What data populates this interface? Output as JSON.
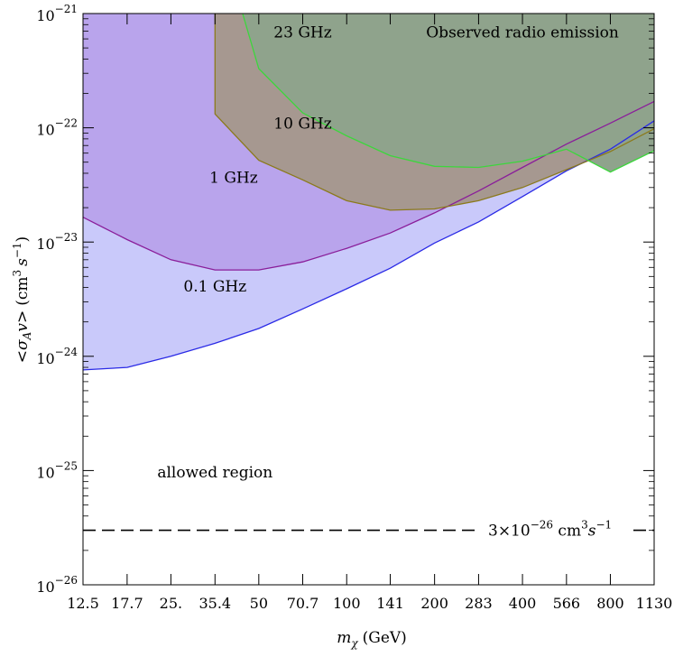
{
  "chart_data": {
    "type": "area",
    "title": "",
    "xlabel": "m_χ (GeV)",
    "xlabel_parts": {
      "symbol": "m",
      "sub": "χ",
      "unit": "(GeV)"
    },
    "ylabel": "<σ_A v> (cm^3 s^-1)",
    "ylabel_parts": {
      "open": "<",
      "sigma": "σ",
      "sigma_sub": "A",
      "v": "v",
      "close": ">",
      "unit_open": "(cm",
      "cm_exp": "3",
      "s": "s",
      "s_exp": "−1",
      "unit_close": ")"
    },
    "x_scale": "log",
    "y_scale": "log",
    "x_ticks": [
      12.5,
      17.7,
      25,
      35.4,
      50,
      70.7,
      100,
      141,
      200,
      283,
      400,
      566,
      800,
      1130
    ],
    "x_tick_labels": [
      "12.5",
      "17.7",
      "25.",
      "35.4",
      "50",
      "70.7",
      "100",
      "141",
      "200",
      "283",
      "400",
      "566",
      "800",
      "1130"
    ],
    "y_ticks": [
      -26,
      -25,
      -24,
      -23,
      -22,
      -21
    ],
    "y_tick_labels": [
      {
        "base": "10",
        "exp": "−26"
      },
      {
        "base": "10",
        "exp": "−25"
      },
      {
        "base": "10",
        "exp": "−24"
      },
      {
        "base": "10",
        "exp": "−23"
      },
      {
        "base": "10",
        "exp": "−22"
      },
      {
        "base": "10",
        "exp": "−21"
      }
    ],
    "xlim": [
      12.5,
      1130
    ],
    "ylim": [
      1e-26,
      1e-21
    ],
    "series": [
      {
        "name": "0.1 GHz",
        "fill": "#c9c9fa",
        "stroke": "#2a2ae6",
        "x": [
          12.5,
          17.7,
          25,
          35.4,
          50,
          70.7,
          100,
          141,
          200,
          283,
          400,
          566,
          800,
          1130
        ],
        "y": [
          7.6e-25,
          8e-25,
          1e-24,
          1.3e-24,
          1.75e-24,
          2.6e-24,
          3.9e-24,
          5.9e-24,
          9.8e-24,
          1.5e-23,
          2.5e-23,
          4.2e-23,
          6.5e-23,
          1.15e-22
        ]
      },
      {
        "name": "1 GHz",
        "fill": "#b9a4ec",
        "stroke": "#8a1e9a",
        "x": [
          12.5,
          17.7,
          25,
          35.4,
          50,
          70.7,
          100,
          141,
          200,
          283,
          400,
          566,
          800,
          1130
        ],
        "y": [
          1.65e-23,
          1.05e-23,
          7e-24,
          5.7e-24,
          5.7e-24,
          6.7e-24,
          8.8e-24,
          1.2e-23,
          1.8e-23,
          2.8e-23,
          4.5e-23,
          7.2e-23,
          1.1e-22,
          1.7e-22
        ]
      },
      {
        "name": "10 GHz",
        "fill": "#a69890",
        "stroke": "#8b7a1c",
        "x": [
          35.4,
          35.4,
          50,
          70.7,
          100,
          141,
          200,
          283,
          400,
          566,
          800,
          1130
        ],
        "y": [
          1e-21,
          1.32e-22,
          5.2e-23,
          3.5e-23,
          2.3e-23,
          1.9e-23,
          1.95e-23,
          2.3e-23,
          3e-23,
          4.3e-23,
          6.2e-23,
          9.8e-23
        ]
      },
      {
        "name": "23 GHz",
        "fill": "#8fa38c",
        "stroke": "#3dd63d",
        "x": [
          44.0,
          50,
          70.7,
          100,
          141,
          200,
          283,
          400,
          566,
          800,
          1130
        ],
        "y": [
          1e-21,
          3.3e-22,
          1.35e-22,
          8.5e-23,
          5.7e-23,
          4.6e-23,
          4.5e-23,
          5.1e-23,
          6.5e-23,
          4.1e-23,
          6.3e-23
        ]
      }
    ],
    "green_wedge": {
      "fill": "#cdf0c6"
    },
    "annotations": [
      {
        "name": "label-23ghz",
        "text": "23 GHz",
        "x": 70.7,
        "y": 6.2e-22
      },
      {
        "name": "label-observed",
        "text": "Observed radio emission",
        "x": 400,
        "y": 6.2e-22
      },
      {
        "name": "label-10ghz",
        "text": "10 GHz",
        "x": 70.7,
        "y": 9.8e-23
      },
      {
        "name": "label-1ghz",
        "text": "1 GHz",
        "x": 41.0,
        "y": 3.3e-23
      },
      {
        "name": "label-01ghz",
        "text": "0.1 GHz",
        "x": 35.4,
        "y": 3.7e-24
      },
      {
        "name": "label-allowed",
        "text": "allowed region",
        "x": 35.4,
        "y": 8.7e-26
      }
    ],
    "reference_line": {
      "y": 3e-26,
      "style": "dashed",
      "label_prefix": "3×10",
      "label_exp": "−26",
      "label_unit": " cm",
      "label_cm_exp": "3",
      "label_s": "s",
      "label_s_exp": "−1"
    }
  }
}
